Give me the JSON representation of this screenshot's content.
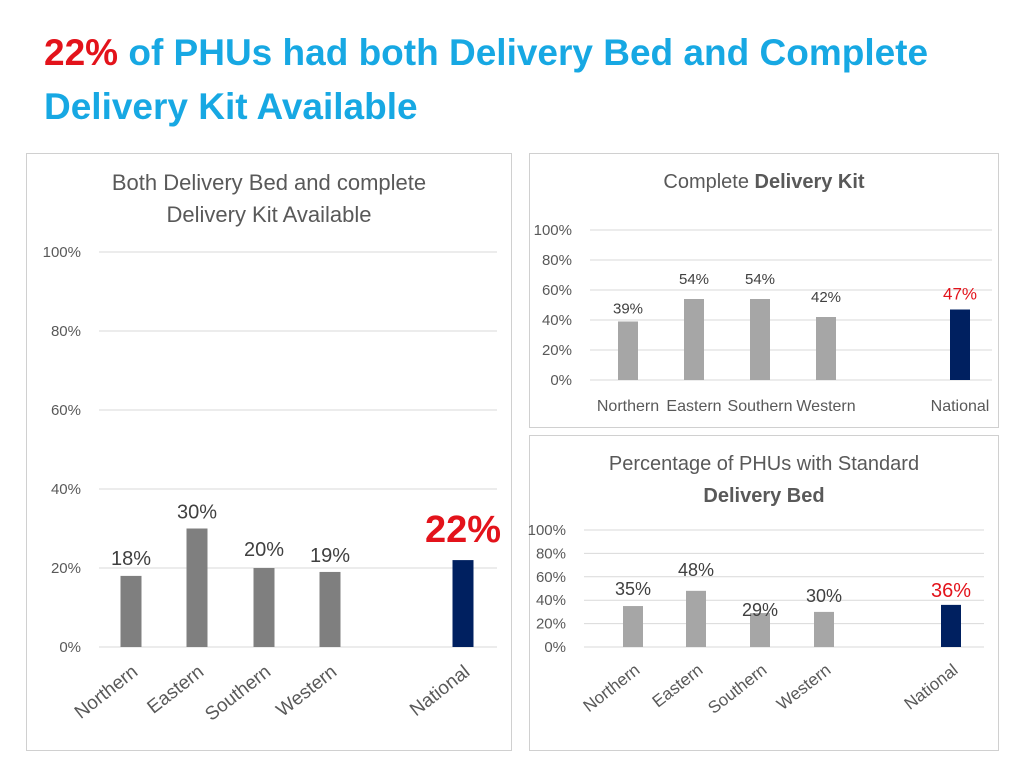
{
  "slide": {
    "title_highlight": "22%",
    "title_rest": " of PHUs had both Delivery Bed and Complete Delivery Kit Available"
  },
  "colors": {
    "title_blue": "#17a8e3",
    "highlight_red": "#e3131b",
    "national_navy": "#002060",
    "region_bar_dark": "#7f7f7f",
    "region_bar_light": "#a6a6a6",
    "grid": "#d9d9d9",
    "text_gray": "#595959"
  },
  "chart_data": [
    {
      "type": "bar",
      "title_lines": [
        [
          {
            "text": "Both Delivery Bed and complete",
            "bold": false
          }
        ],
        [
          {
            "text": "Delivery Kit Available",
            "bold": false
          }
        ]
      ],
      "categories": [
        "Northern",
        "Eastern",
        "Southern",
        "Western",
        "National"
      ],
      "values": [
        18,
        30,
        20,
        19,
        22
      ],
      "value_labels": [
        "18%",
        "30%",
        "20%",
        "19%",
        "22%"
      ],
      "y_ticks": [
        "0%",
        "20%",
        "40%",
        "60%",
        "80%",
        "100%"
      ],
      "ylim": [
        0,
        100
      ],
      "highlight": "National",
      "grid": true,
      "tick_labels_rotated": true
    },
    {
      "type": "bar",
      "title_lines": [
        [
          {
            "text": "Complete ",
            "bold": false
          },
          {
            "text": "Delivery Kit",
            "bold": true
          }
        ]
      ],
      "categories": [
        "Northern",
        "Eastern",
        "Southern",
        "Western",
        "National"
      ],
      "values": [
        39,
        54,
        54,
        42,
        47
      ],
      "value_labels": [
        "39%",
        "54%",
        "54%",
        "42%",
        "47%"
      ],
      "y_ticks": [
        "0%",
        "20%",
        "40%",
        "60%",
        "80%",
        "100%"
      ],
      "ylim": [
        0,
        100
      ],
      "highlight": "National",
      "grid": true,
      "tick_labels_rotated": false
    },
    {
      "type": "bar",
      "title_lines": [
        [
          {
            "text": "Percentage of PHUs with Standard",
            "bold": false
          }
        ],
        [
          {
            "text": "Delivery Bed",
            "bold": true
          }
        ]
      ],
      "categories": [
        "Northern",
        "Eastern",
        "Southern",
        "Western",
        "National"
      ],
      "values": [
        35,
        48,
        29,
        30,
        36
      ],
      "value_labels": [
        "35%",
        "48%",
        "29%",
        "30%",
        "36%"
      ],
      "y_ticks": [
        "0%",
        "20%",
        "40%",
        "60%",
        "80%",
        "100%"
      ],
      "ylim": [
        0,
        100
      ],
      "highlight": "National",
      "grid": true,
      "tick_labels_rotated": true
    }
  ]
}
